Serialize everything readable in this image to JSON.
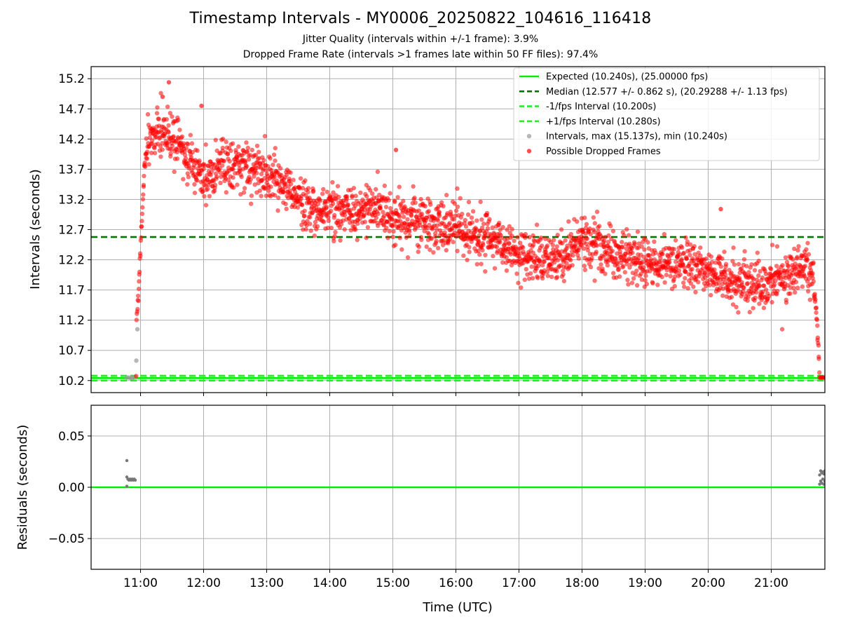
{
  "figure": {
    "title": "Timestamp Intervals - MY0006_20250822_104616_116418",
    "subtitle_jitter": "Jitter Quality (intervals within +/-1 frame): 3.9%",
    "subtitle_dropped": "Dropped Frame Rate (intervals >1 frames late within 50 FF files): 97.4%"
  },
  "colors": {
    "expected": "#00ee00",
    "median": "#007700",
    "fps_bounds": "#22ee22",
    "intervals": "#999999",
    "dropped": "#ff0000",
    "residuals": "#777777",
    "grid": "#b0b0b0"
  },
  "chart_data": [
    {
      "type": "scatter",
      "panel": "intervals",
      "ylabel": "Intervals (seconds)",
      "ylim": [
        10.0,
        15.4
      ],
      "yticks": [
        "10.2",
        "10.7",
        "11.2",
        "11.7",
        "12.2",
        "12.7",
        "13.2",
        "13.7",
        "14.2",
        "14.7",
        "15.2"
      ],
      "grid": true,
      "legend_position": "top-right",
      "reference_lines": [
        {
          "name": "Expected (10.240s), (25.00000 fps)",
          "y": 10.24,
          "style": "solid",
          "color": "#00ee00"
        },
        {
          "name": "Median (12.577 +/- 0.862 s), (20.29288 +/- 1.13 fps)",
          "y": 12.577,
          "style": "dashed",
          "color": "#007700"
        },
        {
          "name": "-1/fps Interval (10.200s)",
          "y": 10.2,
          "style": "dashed",
          "color": "#22ee22"
        },
        {
          "name": "+1/fps Interval (10.280s)",
          "y": 10.28,
          "style": "dashed",
          "color": "#22ee22"
        }
      ],
      "series": [
        {
          "name": "Intervals, max (15.137s), min (10.240s)",
          "color": "#999999",
          "points": [
            {
              "x": "10:47",
              "y": 10.25
            },
            {
              "x": "10:49",
              "y": 10.25
            },
            {
              "x": "10:51",
              "y": 10.24
            },
            {
              "x": "10:53",
              "y": 10.25
            },
            {
              "x": "10:55",
              "y": 10.26
            },
            {
              "x": "10:56",
              "y": 10.53
            },
            {
              "x": "10:57",
              "y": 11.05
            }
          ]
        },
        {
          "name": "Possible Dropped Frames",
          "color": "#ff0000",
          "trend": [
            {
              "x": "10:56",
              "y": 11.2
            },
            {
              "x": "10:58",
              "y": 11.6
            },
            {
              "x": "11:01",
              "y": 12.8
            },
            {
              "x": "11:04",
              "y": 13.8
            },
            {
              "x": "11:10",
              "y": 14.25
            },
            {
              "x": "11:20",
              "y": 14.3
            },
            {
              "x": "11:35",
              "y": 14.15
            },
            {
              "x": "11:50",
              "y": 13.8
            },
            {
              "x": "12:00",
              "y": 13.55
            },
            {
              "x": "12:20",
              "y": 13.8
            },
            {
              "x": "12:45",
              "y": 13.75
            },
            {
              "x": "13:15",
              "y": 13.45
            },
            {
              "x": "13:45",
              "y": 13.0
            },
            {
              "x": "14:15",
              "y": 13.0
            },
            {
              "x": "14:40",
              "y": 13.05
            },
            {
              "x": "15:00",
              "y": 12.9
            },
            {
              "x": "15:30",
              "y": 12.8
            },
            {
              "x": "16:00",
              "y": 12.7
            },
            {
              "x": "16:30",
              "y": 12.55
            },
            {
              "x": "17:00",
              "y": 12.3
            },
            {
              "x": "17:30",
              "y": 12.2
            },
            {
              "x": "18:00",
              "y": 12.5
            },
            {
              "x": "18:30",
              "y": 12.35
            },
            {
              "x": "19:00",
              "y": 12.15
            },
            {
              "x": "19:30",
              "y": 12.15
            },
            {
              "x": "20:00",
              "y": 12.0
            },
            {
              "x": "20:30",
              "y": 11.8
            },
            {
              "x": "21:00",
              "y": 11.85
            },
            {
              "x": "21:30",
              "y": 12.1
            },
            {
              "x": "21:40",
              "y": 11.9
            },
            {
              "x": "21:43",
              "y": 11.3
            },
            {
              "x": "21:45",
              "y": 10.7
            },
            {
              "x": "21:46",
              "y": 10.28
            }
          ],
          "tail": [
            {
              "x": "21:46",
              "y": 10.25
            },
            {
              "x": "21:47",
              "y": 10.25
            },
            {
              "x": "21:48",
              "y": 10.25
            },
            {
              "x": "21:49",
              "y": 10.25
            },
            {
              "x": "21:50",
              "y": 10.25
            },
            {
              "x": "21:51",
              "y": 10.25
            }
          ],
          "notable_points": [
            {
              "x": "11:27",
              "y": 15.14
            },
            {
              "x": "11:21",
              "y": 14.9
            },
            {
              "x": "11:58",
              "y": 14.75
            },
            {
              "x": "15:03",
              "y": 14.02
            },
            {
              "x": "20:12",
              "y": 13.04
            },
            {
              "x": "20:10",
              "y": 11.7
            }
          ]
        }
      ]
    },
    {
      "type": "scatter",
      "panel": "residuals",
      "ylabel": "Residuals (seconds)",
      "xlabel": "Time (UTC)",
      "ylim": [
        -0.08,
        0.08
      ],
      "yticks": [
        "−0.05",
        "0.00",
        "0.05"
      ],
      "xticks": [
        "11:00",
        "12:00",
        "13:00",
        "14:00",
        "15:00",
        "16:00",
        "17:00",
        "18:00",
        "19:00",
        "20:00",
        "21:00"
      ],
      "xlim": [
        "10:13",
        "21:51"
      ],
      "grid": true,
      "zero_line_color": "#00ee00",
      "series": [
        {
          "name": "Residuals",
          "color": "#777777",
          "points": [
            {
              "x": "10:47",
              "y": 0.026
            },
            {
              "x": "10:47",
              "y": 0.01
            },
            {
              "x": "10:47",
              "y": 0.001
            },
            {
              "x": "10:48",
              "y": 0.008
            },
            {
              "x": "10:49",
              "y": 0.007
            },
            {
              "x": "10:50",
              "y": 0.008
            },
            {
              "x": "10:51",
              "y": 0.007
            },
            {
              "x": "10:52",
              "y": 0.008
            },
            {
              "x": "10:53",
              "y": 0.007
            },
            {
              "x": "10:54",
              "y": 0.008
            },
            {
              "x": "10:55",
              "y": 0.007
            },
            {
              "x": "21:46",
              "y": 0.003
            },
            {
              "x": "21:46",
              "y": 0.012
            },
            {
              "x": "21:47",
              "y": 0.016
            },
            {
              "x": "21:47",
              "y": 0.006
            },
            {
              "x": "21:48",
              "y": 0.014
            },
            {
              "x": "21:48",
              "y": 0.004
            },
            {
              "x": "21:49",
              "y": 0.015
            },
            {
              "x": "21:49",
              "y": 0.008
            },
            {
              "x": "21:50",
              "y": 0.013
            },
            {
              "x": "21:50",
              "y": 0.003
            },
            {
              "x": "21:51",
              "y": 0.016
            },
            {
              "x": "21:51",
              "y": 0.006
            }
          ]
        }
      ]
    }
  ]
}
